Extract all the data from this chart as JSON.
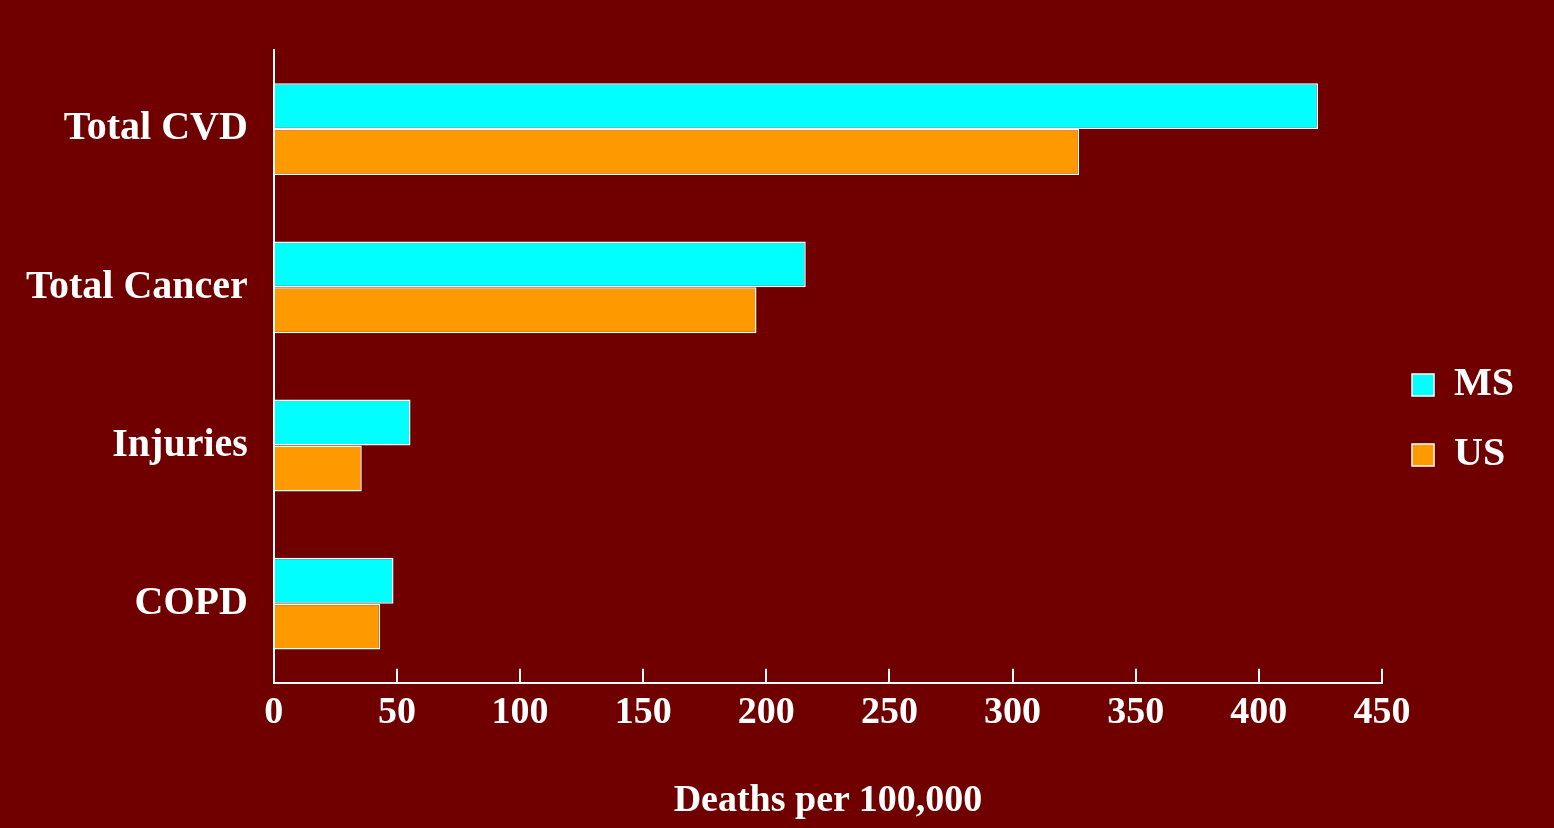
{
  "chart_data": {
    "type": "bar",
    "orientation": "horizontal",
    "xlabel": "Deaths per 100,000",
    "categories": [
      "Total CVD",
      "Total Cancer",
      "Injuries",
      "COPD"
    ],
    "series": [
      {
        "name": "MS",
        "color": "#00ffff",
        "values": [
          424,
          216,
          55.5,
          48.6
        ]
      },
      {
        "name": "US",
        "color": "#ff9900",
        "values": [
          327,
          196,
          35.7,
          43.2
        ]
      }
    ],
    "xlim": [
      0,
      450
    ],
    "xticks": [
      0,
      50,
      100,
      150,
      200,
      250,
      300,
      350,
      400,
      450
    ],
    "grid": false,
    "legend": "right"
  }
}
